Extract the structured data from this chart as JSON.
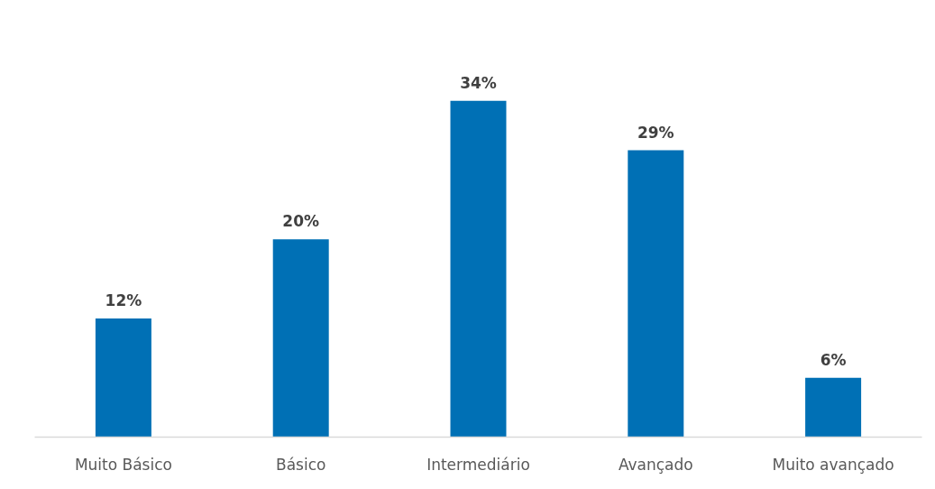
{
  "chart_data": {
    "type": "bar",
    "categories": [
      "Muito Básico",
      "Básico",
      "Intermediário",
      "Avançado",
      "Muito avançado"
    ],
    "values": [
      12,
      20,
      34,
      29,
      6
    ],
    "value_labels": [
      "12%",
      "20%",
      "34%",
      "29%",
      "6%"
    ],
    "color": "#0070b5",
    "tick_labels": "x"
  }
}
